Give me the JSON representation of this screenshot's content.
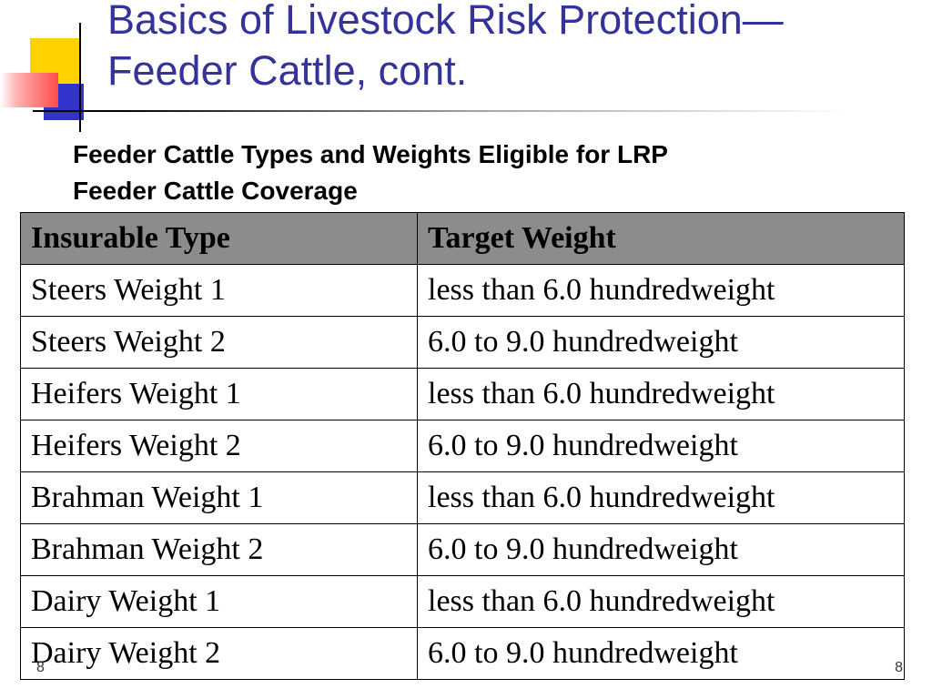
{
  "slide": {
    "title_line1": "Basics of Livestock Risk Protection—",
    "title_line2": "Feeder Cattle, cont.",
    "subtitle_line1": "Feeder Cattle Types and Weights Eligible for LRP",
    "subtitle_line2": "Feeder Cattle Coverage"
  },
  "table": {
    "headers": [
      "Insurable Type",
      "Target Weight"
    ],
    "rows": [
      [
        "Steers Weight 1",
        "less than 6.0 hundredweight"
      ],
      [
        "Steers Weight 2",
        "6.0 to 9.0 hundredweight"
      ],
      [
        "Heifers Weight 1",
        "less than 6.0 hundredweight"
      ],
      [
        "Heifers Weight 2",
        "6.0 to 9.0 hundredweight"
      ],
      [
        "Brahman Weight 1",
        "less than 6.0 hundredweight"
      ],
      [
        "Brahman Weight 2",
        "6.0 to 9.0 hundredweight"
      ],
      [
        "Dairy Weight 1",
        "less than 6.0 hundredweight"
      ],
      [
        "Dairy Weight 2",
        "6.0 to 9.0 hundredweight"
      ]
    ]
  },
  "footer": {
    "page_left": "8",
    "page_right": "8"
  },
  "colors": {
    "title": "#333399",
    "header_bg": "#8c8c8c",
    "accent_yellow": "#ffd200",
    "accent_blue": "#3333cc",
    "accent_red": "#ff4a4a"
  }
}
